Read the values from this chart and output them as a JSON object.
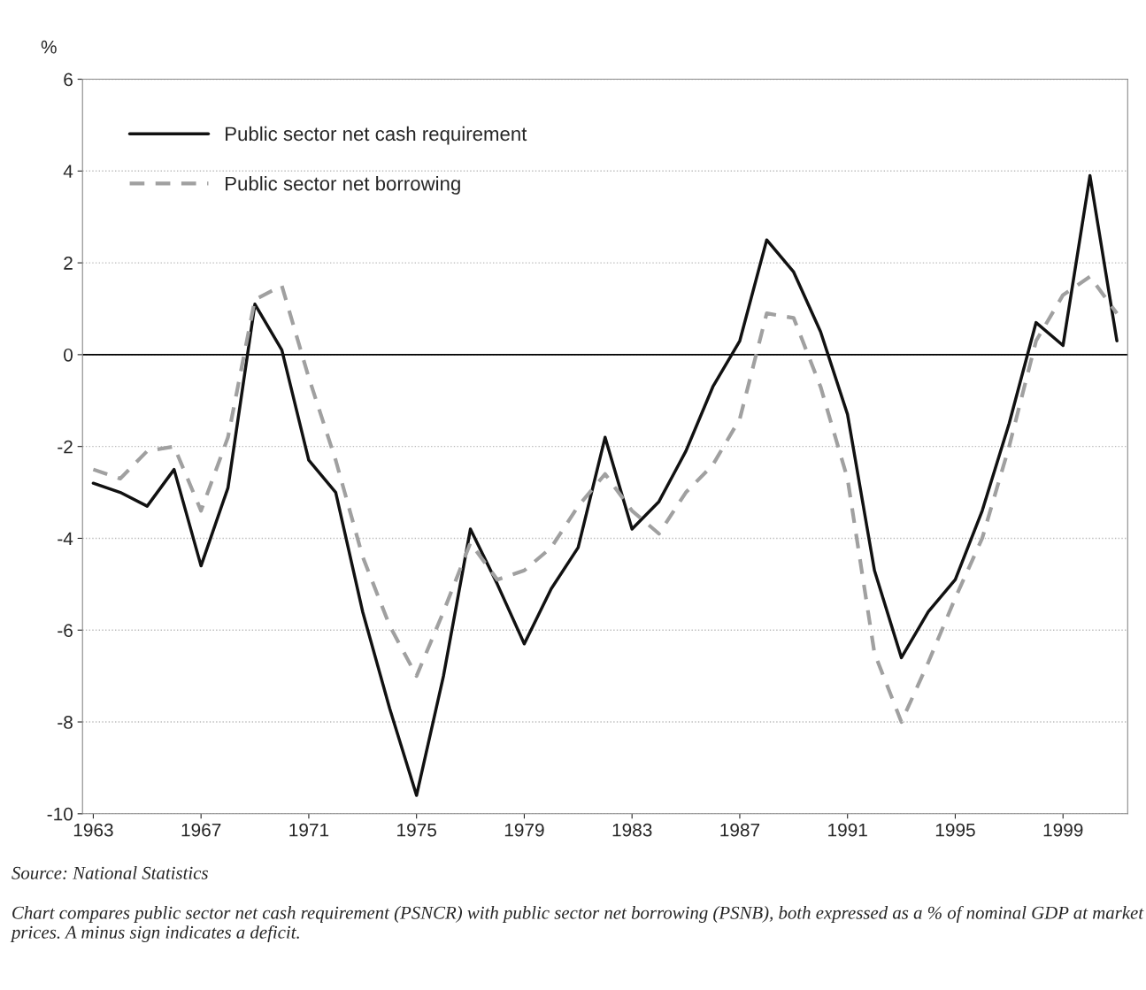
{
  "chart_data": {
    "type": "line",
    "ylabel": "%",
    "x": [
      1963,
      1964,
      1965,
      1966,
      1967,
      1968,
      1969,
      1970,
      1971,
      1972,
      1973,
      1974,
      1975,
      1976,
      1977,
      1978,
      1979,
      1980,
      1981,
      1982,
      1983,
      1984,
      1985,
      1986,
      1987,
      1988,
      1989,
      1990,
      1991,
      1992,
      1993,
      1994,
      1995,
      1996,
      1997,
      1998,
      1999,
      2000,
      2001
    ],
    "series": [
      {
        "name": "Public sector net cash requirement",
        "color": "#111111",
        "line_style": "solid",
        "values": [
          -2.8,
          -3.0,
          -3.3,
          -2.5,
          -4.6,
          -2.9,
          1.1,
          0.1,
          -2.3,
          -3.0,
          -5.6,
          -7.7,
          -9.6,
          -7.0,
          -3.8,
          -5.0,
          -6.3,
          -5.1,
          -4.2,
          -1.8,
          -3.8,
          -3.2,
          -2.1,
          -0.7,
          0.3,
          2.5,
          1.8,
          0.5,
          -1.3,
          -4.7,
          -6.6,
          -5.6,
          -4.9,
          -3.4,
          -1.5,
          0.7,
          0.2,
          3.9,
          0.3
        ]
      },
      {
        "name": "Public sector net borrowing",
        "color": "#a0a0a0",
        "line_style": "dashed",
        "values": [
          -2.5,
          -2.7,
          -2.1,
          -2.0,
          -3.4,
          -1.8,
          1.2,
          1.5,
          -0.5,
          -2.3,
          -4.4,
          -5.9,
          -7.0,
          -5.6,
          -4.1,
          -4.9,
          -4.7,
          -4.2,
          -3.3,
          -2.6,
          -3.4,
          -3.9,
          -3.0,
          -2.4,
          -1.4,
          0.9,
          0.8,
          -0.7,
          -2.7,
          -6.5,
          -8.0,
          -6.7,
          -5.3,
          -4.0,
          -2.0,
          0.3,
          1.3,
          1.7,
          0.9
        ]
      }
    ],
    "xlim": [
      1962.6,
      2001.4
    ],
    "xticks": [
      1963,
      1967,
      1971,
      1975,
      1979,
      1983,
      1987,
      1991,
      1995,
      1999
    ],
    "ylim": [
      -10,
      6
    ],
    "yticks": [
      -10,
      -8,
      -6,
      -4,
      -2,
      0,
      2,
      4,
      6
    ],
    "ref_lines": [
      {
        "axis": "y",
        "value": 0,
        "color": "#000000"
      }
    ],
    "grid": "y",
    "legend": "top left",
    "marker": "none",
    "annotations": [
      "Source: National Statistics",
      "Chart compares public sector net cash requirement (PSNCR) with public sector net borrowing (PSNB), both expressed as a % of nominal GDP at market prices. A minus sign indicates a deficit."
    ]
  }
}
